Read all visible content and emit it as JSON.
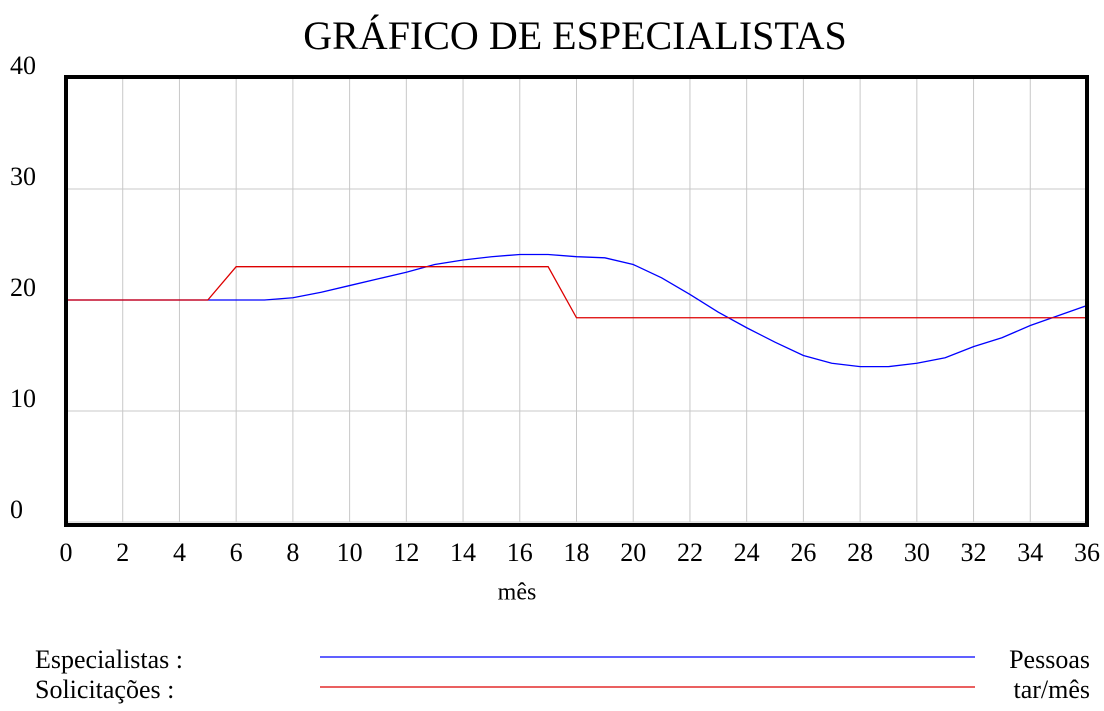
{
  "chart_data": {
    "type": "line",
    "title": "GRÁFICO DE ESPECIALISTAS",
    "x_label": "mês",
    "x": [
      0,
      1,
      2,
      3,
      4,
      5,
      6,
      7,
      8,
      9,
      10,
      11,
      12,
      13,
      14,
      15,
      16,
      17,
      18,
      19,
      20,
      21,
      22,
      23,
      24,
      25,
      26,
      27,
      28,
      29,
      30,
      31,
      32,
      33,
      34,
      35,
      36
    ],
    "series": [
      {
        "name": "Especialistas :",
        "unit": "Pessoas",
        "color": "#0000ff",
        "values": [
          20,
          20,
          20,
          20,
          20,
          20,
          20,
          20,
          20.2,
          20.7,
          21.3,
          21.9,
          22.5,
          23.2,
          23.6,
          23.9,
          24.1,
          24.1,
          23.9,
          23.8,
          23.2,
          22.0,
          20.5,
          18.9,
          17.5,
          16.2,
          15.0,
          14.3,
          14.0,
          14.0,
          14.3,
          14.8,
          15.8,
          16.6,
          17.7,
          18.6,
          19.5
        ]
      },
      {
        "name": "Solicitações :",
        "unit": "tar/mês",
        "color": "#dd0000",
        "values": [
          20,
          20,
          20,
          20,
          20,
          20,
          23,
          23,
          23,
          23,
          23,
          23,
          23,
          23,
          23,
          23,
          23,
          23,
          18.4,
          18.4,
          18.4,
          18.4,
          18.4,
          18.4,
          18.4,
          18.4,
          18.4,
          18.4,
          18.4,
          18.4,
          18.4,
          18.4,
          18.4,
          18.4,
          18.4,
          18.4,
          18.4
        ]
      }
    ],
    "xlim": [
      0,
      36
    ],
    "xticks": [
      0,
      2,
      4,
      6,
      8,
      10,
      12,
      14,
      16,
      18,
      20,
      22,
      24,
      26,
      28,
      30,
      32,
      34,
      36
    ],
    "ylim": [
      0,
      40
    ],
    "yticks": [
      0,
      10,
      20,
      30,
      40
    ],
    "grid": true
  }
}
